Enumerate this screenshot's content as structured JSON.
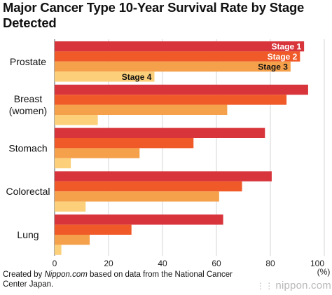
{
  "chart_data": {
    "type": "bar",
    "orientation": "horizontal",
    "title": "Major Cancer Type 10-Year Survival Rate by Stage Detected",
    "categories": [
      "Prostate",
      "Breast (women)",
      "Stomach",
      "Colorectal",
      "Lung"
    ],
    "category_lines": [
      [
        "Prostate"
      ],
      [
        "Breast",
        "(women)"
      ],
      [
        "Stomach"
      ],
      [
        "Colorectal"
      ],
      [
        "Lung"
      ]
    ],
    "series": [
      {
        "name": "Stage 1",
        "color": "#d8343b",
        "values": [
          92.5,
          94.0,
          78.0,
          80.5,
          62.5
        ]
      },
      {
        "name": "Stage 2",
        "color": "#f05a28",
        "values": [
          91.0,
          86.0,
          51.5,
          69.5,
          28.5
        ]
      },
      {
        "name": "Stage 3",
        "color": "#f5a04a",
        "values": [
          87.5,
          64.0,
          31.5,
          61.0,
          13.0
        ]
      },
      {
        "name": "Stage 4",
        "color": "#fcd07a",
        "values": [
          37.0,
          16.0,
          6.0,
          11.5,
          2.5
        ]
      }
    ],
    "series_label_colors": [
      "#ffffff",
      "#ffffff",
      "#111111",
      "#111111"
    ],
    "x_ticks": [
      "0",
      "20",
      "40",
      "60",
      "80",
      "100"
    ],
    "x_unit": "(%)",
    "xlim": [
      0,
      100
    ],
    "grid": true,
    "legend": "inline labels on Prostate bars"
  },
  "footer": {
    "created_by_prefix": "Created by ",
    "source_site": "Nippon.com",
    "created_by_suffix": " based on data from the National Cancer Center Japan."
  },
  "brand": {
    "logo_text": "nippon.com",
    "logo_icon": "nippon-dots-icon"
  }
}
